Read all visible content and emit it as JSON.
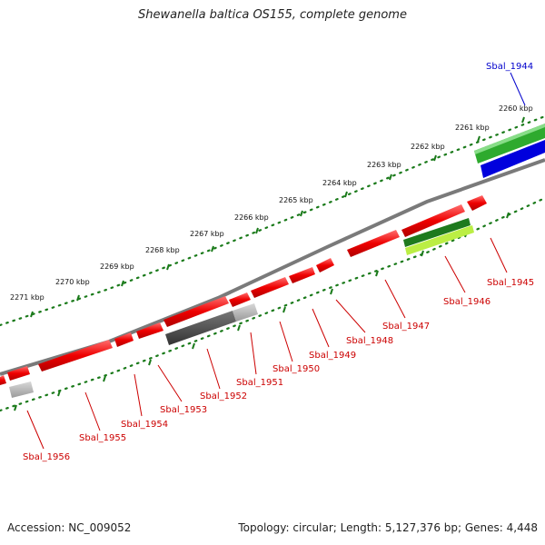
{
  "title": "Shewanella baltica OS155, complete genome",
  "accession": "Accession: NC_009052",
  "summary": "Topology: circular; Length: 5,127,376 bp; Genes: 4,448",
  "colors": {
    "forward_gene": "#ee0000",
    "forward_gene_light": "#ff8080",
    "pseudo_gene": "#b0b0b0",
    "reverse_dark": "#555555",
    "green_feature": "#2eaa2e",
    "blue_feature": "#0000dd",
    "lime_feature": "#bbee44",
    "backbone": "#808080",
    "tick": "#1a7a1a",
    "label_red": "#cc0000",
    "label_blue": "#0000cc"
  },
  "ruler_labels": [
    "2260 kbp",
    "2261 kbp",
    "2262 kbp",
    "2263 kbp",
    "2264 kbp",
    "2265 kbp",
    "2266 kbp",
    "2267 kbp",
    "2268 kbp",
    "2269 kbp",
    "2270 kbp",
    "2271 kbp"
  ],
  "gene_labels": [
    "Sbal_1944",
    "Sbal_1945",
    "Sbal_1946",
    "Sbal_1947",
    "Sbal_1948",
    "Sbal_1949",
    "Sbal_1950",
    "Sbal_1951",
    "Sbal_1952",
    "Sbal_1953",
    "Sbal_1954",
    "Sbal_1955",
    "Sbal_1956"
  ]
}
